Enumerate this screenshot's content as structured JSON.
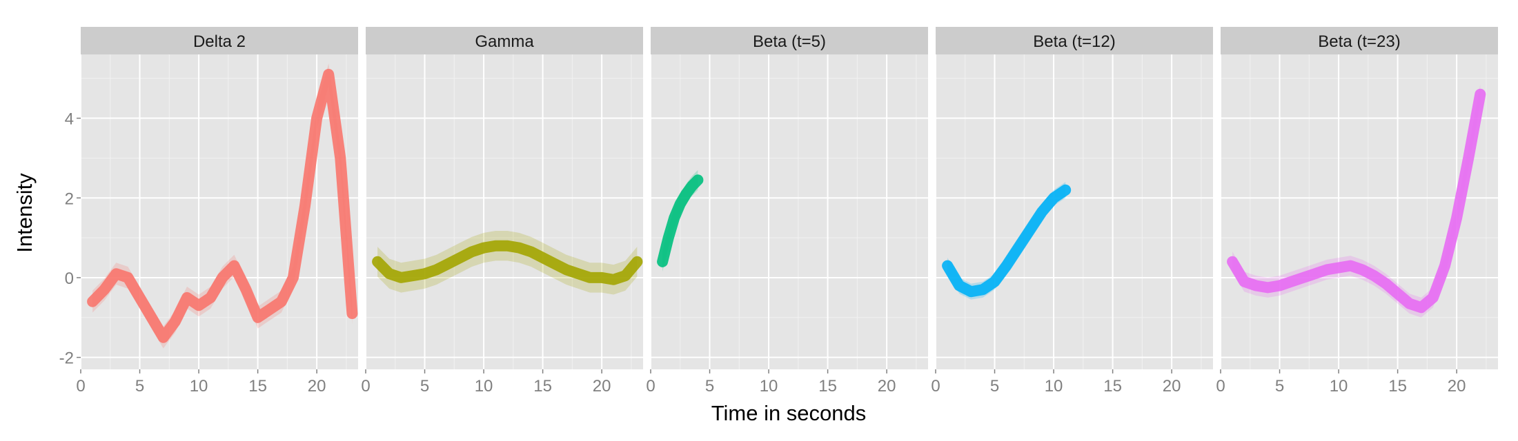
{
  "chart_data": {
    "type": "line",
    "xlabel": "Time in seconds",
    "ylabel": "Intensity",
    "xlim": [
      0,
      23.5
    ],
    "ylim": [
      -2.3,
      5.6
    ],
    "x_ticks": [
      0,
      5,
      10,
      15,
      20
    ],
    "y_ticks": [
      -2,
      0,
      2,
      4
    ],
    "grid": true,
    "legend": "none",
    "panels": [
      {
        "title": "Delta 2",
        "color": "#F8766D",
        "band_width": 0.55,
        "x": [
          1,
          2,
          3,
          4,
          5,
          6,
          7,
          8,
          9,
          10,
          11,
          12,
          13,
          14,
          15,
          16,
          17,
          18,
          19,
          20,
          21,
          22,
          23
        ],
        "y": [
          -0.6,
          -0.3,
          0.1,
          0.0,
          -0.5,
          -1.0,
          -1.5,
          -1.1,
          -0.5,
          -0.7,
          -0.5,
          0.0,
          0.3,
          -0.3,
          -1.0,
          -0.8,
          -0.6,
          0.0,
          1.8,
          4.0,
          5.1,
          3.0,
          -0.9
        ]
      },
      {
        "title": "Gamma",
        "color": "#A3A500",
        "band_width": 0.75,
        "x": [
          1,
          2,
          3,
          4,
          5,
          6,
          7,
          8,
          9,
          10,
          11,
          12,
          13,
          14,
          15,
          16,
          17,
          18,
          19,
          20,
          21,
          22,
          23
        ],
        "y": [
          0.4,
          0.1,
          0.0,
          0.05,
          0.1,
          0.2,
          0.35,
          0.5,
          0.65,
          0.75,
          0.8,
          0.8,
          0.75,
          0.65,
          0.5,
          0.35,
          0.2,
          0.1,
          0.0,
          0.0,
          -0.05,
          0.05,
          0.4
        ]
      },
      {
        "title": "Beta (t=5)",
        "color": "#00BF7D",
        "band_width": 0.5,
        "x": [
          1,
          1.5,
          2,
          2.5,
          3,
          3.5,
          4
        ],
        "y": [
          0.4,
          1.0,
          1.5,
          1.85,
          2.1,
          2.3,
          2.45
        ]
      },
      {
        "title": "Beta (t=12)",
        "color": "#00B0F6",
        "band_width": 0.4,
        "x": [
          1,
          2,
          3,
          4,
          5,
          6,
          7,
          8,
          9,
          10,
          11
        ],
        "y": [
          0.3,
          -0.2,
          -0.35,
          -0.3,
          -0.1,
          0.3,
          0.75,
          1.2,
          1.65,
          2.0,
          2.2
        ]
      },
      {
        "title": "Beta (t=23)",
        "color": "#E76BF3",
        "band_width": 0.5,
        "x": [
          1,
          2,
          3,
          4,
          5,
          6,
          7,
          8,
          9,
          10,
          11,
          12,
          13,
          14,
          15,
          16,
          17,
          18,
          19,
          20,
          21,
          22
        ],
        "y": [
          0.4,
          -0.1,
          -0.2,
          -0.25,
          -0.2,
          -0.1,
          0.0,
          0.1,
          0.2,
          0.25,
          0.3,
          0.2,
          0.05,
          -0.15,
          -0.4,
          -0.65,
          -0.75,
          -0.5,
          0.3,
          1.5,
          3.0,
          4.6
        ]
      }
    ]
  }
}
